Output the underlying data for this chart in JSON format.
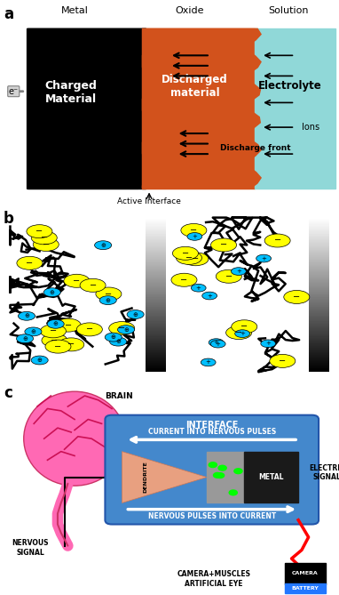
{
  "panel_a": {
    "label": "a",
    "metal_label": "Metal",
    "oxide_label": "Oxide",
    "solution_label": "Solution",
    "charged_text": "Charged\nMaterial",
    "discharged_text": "Discharged\nmaterial",
    "electrolyte_text": "Electrolyte",
    "discharge_front_text": "Discharge front",
    "ions_text": "Ions",
    "active_interface_text": "Active Interface",
    "electron_label": "e⁻",
    "black_color": "#000000",
    "orange_color": "#D2521C",
    "cyan_color": "#A8E8E8",
    "white_text": "#FFFFFF",
    "black_text": "#000000"
  },
  "panel_b": {
    "label": "b"
  },
  "panel_c": {
    "label": "c",
    "brain_label": "BRAIN",
    "interface_label": "INTERFACE",
    "current_to_nerve_text": "CURRENT INTO NERVOUS PULSES",
    "nerve_to_current_text": "NERVOUS PULSES INTO CURRENT",
    "dendrite_text": "DENDRITE",
    "metal_text": "METAL",
    "nervous_signal_text": "NERVOUS\nSIGNAL",
    "electric_signal_text": "ELECTRIC\nSIGNAL",
    "camera_muscles_text": "CAMERA+MUSCLES\nARTIFICIAL EYE",
    "camera_text": "CAMERA",
    "battery_text": "BATTERY"
  },
  "fig_bg": "#FFFFFF"
}
